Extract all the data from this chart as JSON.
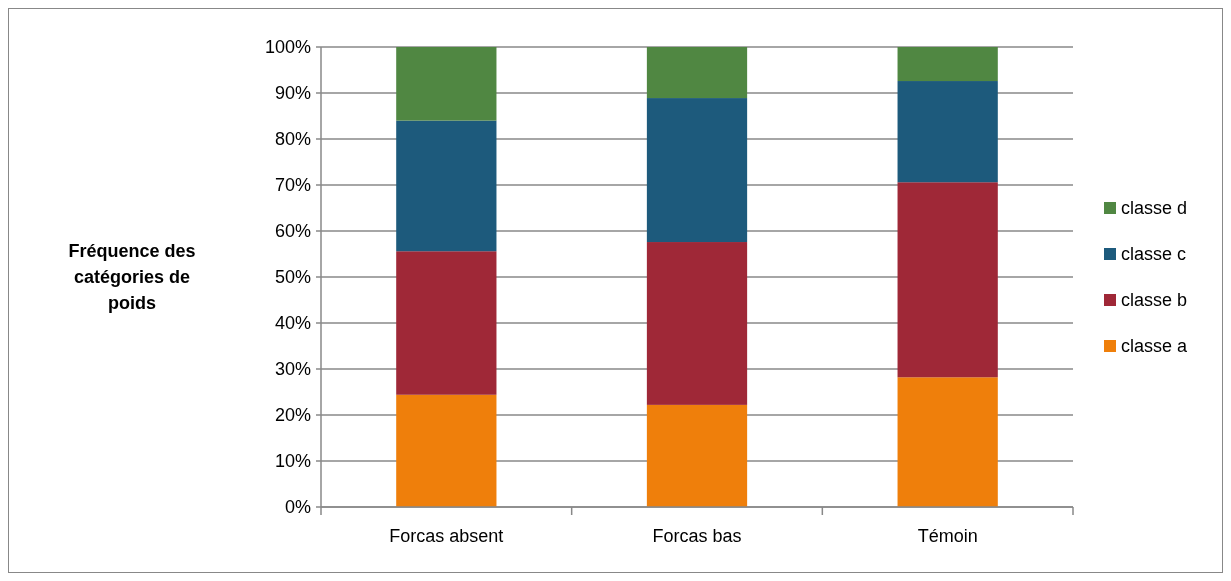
{
  "chart_data": {
    "type": "bar",
    "stacked": true,
    "ylabel": "Fréquence des catégories de poids",
    "categories": [
      "Forcas absent",
      "Forcas bas",
      "Témoin"
    ],
    "series": [
      {
        "name": "classe a",
        "color": "#ef7f0b",
        "values": [
          24.4,
          22.2,
          28.2
        ]
      },
      {
        "name": "classe b",
        "color": "#9f2837",
        "values": [
          31.2,
          35.4,
          42.4
        ]
      },
      {
        "name": "classe c",
        "color": "#1d5a7c",
        "values": [
          28.4,
          31.3,
          22
        ]
      },
      {
        "name": "classe d",
        "color": "#508742",
        "values": [
          16,
          11.1,
          7.4
        ]
      }
    ],
    "ylim": [
      0,
      100
    ],
    "yticks": [
      {
        "value": 0,
        "label": "0%"
      },
      {
        "value": 10,
        "label": "10%"
      },
      {
        "value": 20,
        "label": "20%"
      },
      {
        "value": 30,
        "label": "30%"
      },
      {
        "value": 40,
        "label": "40%"
      },
      {
        "value": 50,
        "label": "50%"
      },
      {
        "value": 60,
        "label": "60%"
      },
      {
        "value": 70,
        "label": "70%"
      },
      {
        "value": 80,
        "label": "80%"
      },
      {
        "value": 90,
        "label": "90%"
      },
      {
        "value": 100,
        "label": "100%"
      }
    ],
    "grid": "y",
    "legend": "right"
  }
}
